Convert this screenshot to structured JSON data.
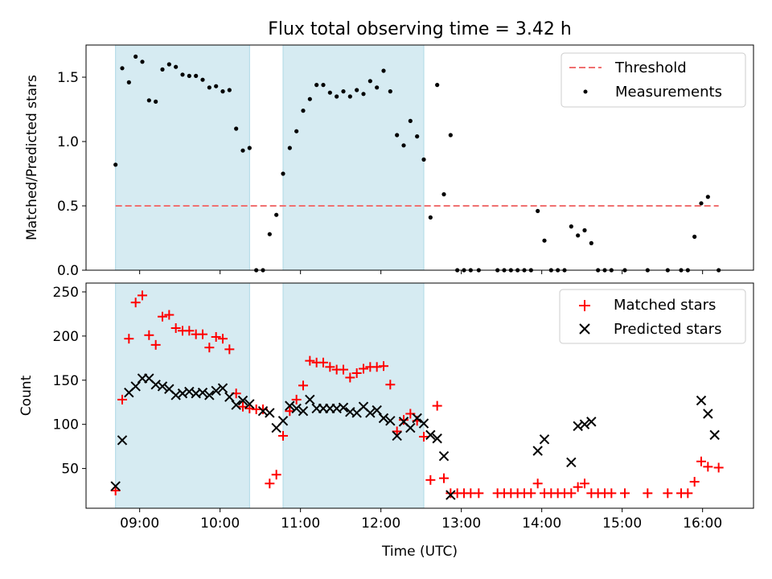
{
  "title": "Flux total observing time = 3.42 h",
  "colors": {
    "threshold": "#f07070",
    "shade": "#add8e6",
    "matched": "#ff0000",
    "predicted": "#000000",
    "measurement": "#000000"
  },
  "chart_data": [
    {
      "type": "scatter",
      "ylabel": "Matched/Predicted stars",
      "ylim": [
        0,
        1.75
      ],
      "yticks": [
        0.0,
        0.5,
        1.0,
        1.5
      ],
      "ytick_labels": [
        "0.0",
        "0.5",
        "1.0",
        "1.5"
      ],
      "shaded_periods": [
        [
          "08:42",
          "10:22"
        ],
        [
          "10:47",
          "12:32"
        ]
      ],
      "threshold": {
        "name": "Threshold",
        "value": 0.5,
        "x_range": [
          "08:42",
          "16:12"
        ]
      },
      "legend": {
        "position": "top-right",
        "entries": [
          "Threshold",
          "Measurements"
        ]
      },
      "series": [
        {
          "name": "Measurements",
          "points": [
            [
              "08:42",
              0.82
            ],
            [
              "08:47",
              1.57
            ],
            [
              "08:52",
              1.46
            ],
            [
              "08:57",
              1.66
            ],
            [
              "09:02",
              1.62
            ],
            [
              "09:07",
              1.32
            ],
            [
              "09:12",
              1.31
            ],
            [
              "09:17",
              1.56
            ],
            [
              "09:22",
              1.6
            ],
            [
              "09:27",
              1.58
            ],
            [
              "09:32",
              1.52
            ],
            [
              "09:37",
              1.51
            ],
            [
              "09:42",
              1.51
            ],
            [
              "09:47",
              1.48
            ],
            [
              "09:52",
              1.42
            ],
            [
              "09:57",
              1.43
            ],
            [
              "10:02",
              1.39
            ],
            [
              "10:07",
              1.4
            ],
            [
              "10:12",
              1.1
            ],
            [
              "10:17",
              0.93
            ],
            [
              "10:22",
              0.95
            ],
            [
              "10:27",
              0.0
            ],
            [
              "10:32",
              0.0
            ],
            [
              "10:37",
              0.28
            ],
            [
              "10:42",
              0.43
            ],
            [
              "10:47",
              0.75
            ],
            [
              "10:52",
              0.95
            ],
            [
              "10:57",
              1.08
            ],
            [
              "11:02",
              1.24
            ],
            [
              "11:07",
              1.33
            ],
            [
              "11:12",
              1.44
            ],
            [
              "11:17",
              1.44
            ],
            [
              "11:22",
              1.38
            ],
            [
              "11:27",
              1.35
            ],
            [
              "11:32",
              1.39
            ],
            [
              "11:37",
              1.35
            ],
            [
              "11:42",
              1.4
            ],
            [
              "11:47",
              1.37
            ],
            [
              "11:52",
              1.47
            ],
            [
              "11:57",
              1.42
            ],
            [
              "12:02",
              1.55
            ],
            [
              "12:07",
              1.39
            ],
            [
              "12:12",
              1.05
            ],
            [
              "12:17",
              0.97
            ],
            [
              "12:22",
              1.16
            ],
            [
              "12:27",
              1.04
            ],
            [
              "12:32",
              0.86
            ],
            [
              "12:37",
              0.41
            ],
            [
              "12:42",
              1.44
            ],
            [
              "12:47",
              0.59
            ],
            [
              "12:52",
              1.05
            ],
            [
              "12:57",
              0.0
            ],
            [
              "13:02",
              0.0
            ],
            [
              "13:07",
              0.0
            ],
            [
              "13:13",
              0.0
            ],
            [
              "13:27",
              0.0
            ],
            [
              "13:32",
              0.0
            ],
            [
              "13:37",
              0.0
            ],
            [
              "13:42",
              0.0
            ],
            [
              "13:47",
              0.0
            ],
            [
              "13:52",
              0.0
            ],
            [
              "13:57",
              0.46
            ],
            [
              "14:02",
              0.23
            ],
            [
              "14:07",
              0.0
            ],
            [
              "14:12",
              0.0
            ],
            [
              "14:17",
              0.0
            ],
            [
              "14:22",
              0.34
            ],
            [
              "14:27",
              0.27
            ],
            [
              "14:32",
              0.31
            ],
            [
              "14:37",
              0.21
            ],
            [
              "14:42",
              0.0
            ],
            [
              "14:47",
              0.0
            ],
            [
              "14:52",
              0.0
            ],
            [
              "15:02",
              0.0
            ],
            [
              "15:19",
              0.0
            ],
            [
              "15:34",
              0.0
            ],
            [
              "15:44",
              0.0
            ],
            [
              "15:49",
              0.0
            ],
            [
              "15:54",
              0.26
            ],
            [
              "15:59",
              0.52
            ],
            [
              "16:04",
              0.57
            ],
            [
              "16:12",
              0.0
            ]
          ]
        }
      ]
    },
    {
      "type": "scatter",
      "xlabel": "Time (UTC)",
      "ylabel": "Count",
      "ylim": [
        5,
        260
      ],
      "yticks": [
        50,
        100,
        150,
        200,
        250
      ],
      "ytick_labels": [
        "50",
        "100",
        "150",
        "200",
        "250"
      ],
      "xlim": [
        "08:20",
        "16:38"
      ],
      "xticks": [
        "09:00",
        "10:00",
        "11:00",
        "12:00",
        "13:00",
        "14:00",
        "15:00",
        "16:00"
      ],
      "xtick_labels": [
        "09:00",
        "10:00",
        "11:00",
        "12:00",
        "13:00",
        "14:00",
        "15:00",
        "16:00"
      ],
      "shaded_periods": [
        [
          "08:42",
          "10:22"
        ],
        [
          "10:47",
          "12:32"
        ]
      ],
      "legend": {
        "position": "top-right",
        "entries": [
          "Matched stars",
          "Predicted stars"
        ]
      },
      "series": [
        {
          "name": "Matched stars",
          "marker": "+",
          "points": [
            [
              "08:42",
              25
            ],
            [
              "08:47",
              128
            ],
            [
              "08:52",
              197
            ],
            [
              "08:57",
              238
            ],
            [
              "09:02",
              246
            ],
            [
              "09:07",
              201
            ],
            [
              "09:12",
              190
            ],
            [
              "09:17",
              222
            ],
            [
              "09:22",
              224
            ],
            [
              "09:27",
              209
            ],
            [
              "09:32",
              206
            ],
            [
              "09:37",
              206
            ],
            [
              "09:42",
              202
            ],
            [
              "09:47",
              202
            ],
            [
              "09:52",
              187
            ],
            [
              "09:57",
              199
            ],
            [
              "10:02",
              197
            ],
            [
              "10:07",
              185
            ],
            [
              "10:12",
              135
            ],
            [
              "10:17",
              120
            ],
            [
              "10:22",
              118
            ],
            [
              "10:27",
              117
            ],
            [
              "10:32",
              117
            ],
            [
              "10:37",
              33
            ],
            [
              "10:42",
              43
            ],
            [
              "10:47",
              87
            ],
            [
              "10:52",
              115
            ],
            [
              "10:57",
              128
            ],
            [
              "11:02",
              144
            ],
            [
              "11:07",
              172
            ],
            [
              "11:12",
              170
            ],
            [
              "11:17",
              170
            ],
            [
              "11:22",
              165
            ],
            [
              "11:27",
              162
            ],
            [
              "11:32",
              162
            ],
            [
              "11:37",
              153
            ],
            [
              "11:42",
              158
            ],
            [
              "11:47",
              163
            ],
            [
              "11:52",
              165
            ],
            [
              "11:57",
              165
            ],
            [
              "12:02",
              166
            ],
            [
              "12:07",
              145
            ],
            [
              "12:12",
              92
            ],
            [
              "12:17",
              105
            ],
            [
              "12:22",
              112
            ],
            [
              "12:27",
              104
            ],
            [
              "12:32",
              86
            ],
            [
              "12:37",
              37
            ],
            [
              "12:42",
              121
            ],
            [
              "12:47",
              39
            ],
            [
              "12:52",
              22
            ],
            [
              "12:57",
              22
            ],
            [
              "13:02",
              22
            ],
            [
              "13:07",
              22
            ],
            [
              "13:13",
              22
            ],
            [
              "13:27",
              22
            ],
            [
              "13:32",
              22
            ],
            [
              "13:37",
              22
            ],
            [
              "13:42",
              22
            ],
            [
              "13:47",
              22
            ],
            [
              "13:52",
              22
            ],
            [
              "13:57",
              33
            ],
            [
              "14:02",
              22
            ],
            [
              "14:07",
              22
            ],
            [
              "14:12",
              22
            ],
            [
              "14:17",
              22
            ],
            [
              "14:22",
              22
            ],
            [
              "14:27",
              29
            ],
            [
              "14:32",
              33
            ],
            [
              "14:37",
              22
            ],
            [
              "14:42",
              22
            ],
            [
              "14:47",
              22
            ],
            [
              "14:52",
              22
            ],
            [
              "15:02",
              22
            ],
            [
              "15:19",
              22
            ],
            [
              "15:34",
              22
            ],
            [
              "15:44",
              22
            ],
            [
              "15:49",
              22
            ],
            [
              "15:54",
              35
            ],
            [
              "15:59",
              58
            ],
            [
              "16:04",
              52
            ],
            [
              "16:12",
              51
            ]
          ]
        },
        {
          "name": "Predicted stars",
          "marker": "x",
          "points": [
            [
              "08:42",
              30
            ],
            [
              "08:47",
              82
            ],
            [
              "08:52",
              136
            ],
            [
              "08:57",
              143
            ],
            [
              "09:02",
              152
            ],
            [
              "09:07",
              152
            ],
            [
              "09:12",
              145
            ],
            [
              "09:17",
              143
            ],
            [
              "09:22",
              140
            ],
            [
              "09:27",
              133
            ],
            [
              "09:32",
              135
            ],
            [
              "09:37",
              137
            ],
            [
              "09:42",
              135
            ],
            [
              "09:47",
              136
            ],
            [
              "09:52",
              133
            ],
            [
              "09:57",
              138
            ],
            [
              "10:02",
              141
            ],
            [
              "10:07",
              131
            ],
            [
              "10:12",
              122
            ],
            [
              "10:17",
              127
            ],
            [
              "10:22",
              123
            ],
            [
              "10:32",
              115
            ],
            [
              "10:37",
              113
            ],
            [
              "10:42",
              96
            ],
            [
              "10:47",
              104
            ],
            [
              "10:52",
              121
            ],
            [
              "10:57",
              118
            ],
            [
              "11:02",
              115
            ],
            [
              "11:07",
              128
            ],
            [
              "11:12",
              118
            ],
            [
              "11:17",
              118
            ],
            [
              "11:22",
              118
            ],
            [
              "11:27",
              118
            ],
            [
              "11:32",
              119
            ],
            [
              "11:37",
              114
            ],
            [
              "11:42",
              113
            ],
            [
              "11:47",
              120
            ],
            [
              "11:52",
              113
            ],
            [
              "11:57",
              116
            ],
            [
              "12:02",
              107
            ],
            [
              "12:07",
              104
            ],
            [
              "12:12",
              87
            ],
            [
              "12:17",
              103
            ],
            [
              "12:22",
              96
            ],
            [
              "12:27",
              107
            ],
            [
              "12:32",
              101
            ],
            [
              "12:37",
              88
            ],
            [
              "12:42",
              84
            ],
            [
              "12:47",
              64
            ],
            [
              "12:52",
              20
            ],
            [
              "13:57",
              70
            ],
            [
              "14:02",
              83
            ],
            [
              "14:22",
              57
            ],
            [
              "14:27",
              98
            ],
            [
              "14:32",
              100
            ],
            [
              "14:37",
              103
            ],
            [
              "15:59",
              127
            ],
            [
              "16:04",
              112
            ],
            [
              "16:09",
              88
            ]
          ]
        }
      ]
    }
  ]
}
